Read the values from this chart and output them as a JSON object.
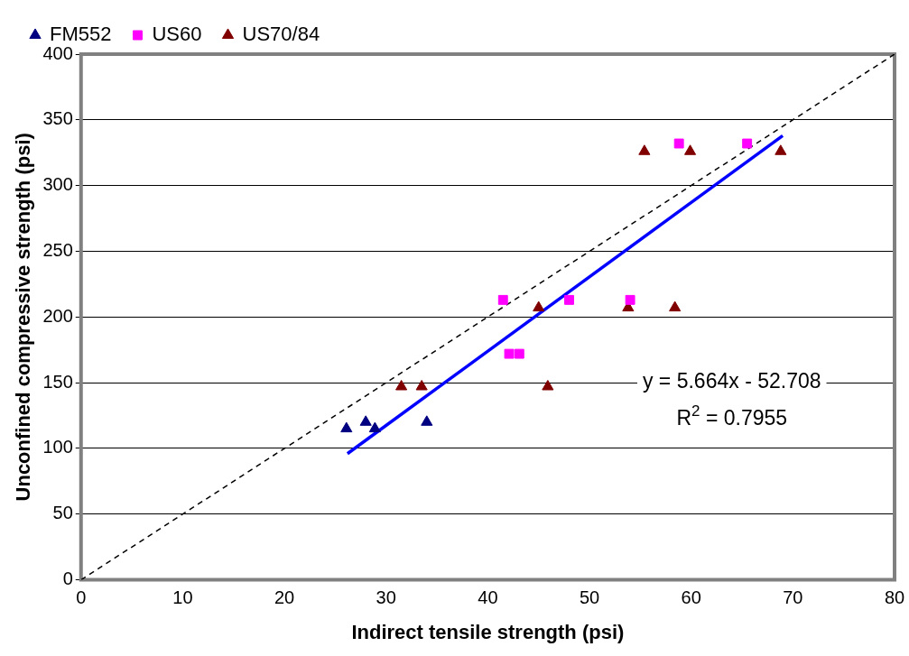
{
  "chart_data": {
    "type": "scatter",
    "xlabel": "Indirect tensile strength (psi)",
    "ylabel": "Unconfined compressive strength (psi)",
    "xlim": [
      0,
      80
    ],
    "xticks": [
      0,
      10,
      20,
      30,
      40,
      50,
      60,
      70,
      80
    ],
    "ylim": [
      0,
      400
    ],
    "yticks": [
      0,
      50,
      100,
      150,
      200,
      250,
      300,
      350,
      400
    ],
    "grid": "y",
    "legend": "top",
    "series": [
      {
        "name": "FM552",
        "color": "#000080",
        "marker": "triangle",
        "x": [
          26.1,
          28,
          28.9,
          34
        ],
        "values": [
          115,
          120,
          115,
          120
        ]
      },
      {
        "name": "US60",
        "color": "#ff00ff",
        "marker": "square",
        "x": [
          41.5,
          42.1,
          43.1,
          48,
          54,
          58.8,
          65.5
        ],
        "values": [
          213,
          172,
          172,
          213,
          213,
          332,
          332
        ]
      },
      {
        "name": "US70/84",
        "color": "#800000",
        "marker": "triangle",
        "x": [
          31.5,
          33.5,
          45,
          45.9,
          53.8,
          58.4,
          55.4,
          59.9,
          68.8
        ],
        "values": [
          147,
          147,
          207,
          147,
          207,
          207,
          326,
          326,
          326
        ]
      },
      {
        "type": "line",
        "color": "#0000ff",
        "marker": "none",
        "line_style": "solid",
        "x": [
          26.2,
          69
        ],
        "values": [
          96,
          338
        ]
      },
      {
        "type": "line",
        "color": "#000000",
        "marker": "none",
        "line_style": "dashed",
        "x": [
          0,
          80
        ],
        "values": [
          0,
          400
        ]
      }
    ],
    "annotations": [
      "y = 5.664x - 52.708",
      "R$^{2}$ = 0.7955"
    ]
  }
}
